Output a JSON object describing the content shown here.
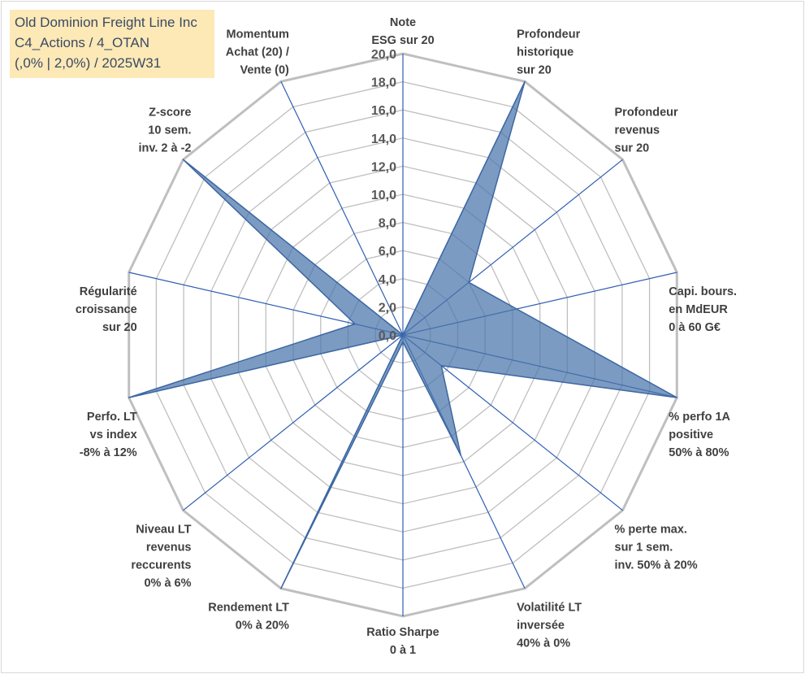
{
  "header": {
    "line1": "Old Dominion Freight Line Inc",
    "line2": "C4_Actions / 4_OTAN",
    "line3": "(,0% | 2,0%) / 2025W31"
  },
  "chart_data": {
    "type": "radar",
    "ylim": [
      0,
      20
    ],
    "tick_labels": [
      "0,0",
      "2,0",
      "4,0",
      "6,0",
      "8,0",
      "10,0",
      "12,0",
      "14,0",
      "16,0",
      "18,0",
      "20,0"
    ],
    "grid": true,
    "categories": [
      [
        "Note",
        "ESG sur 20"
      ],
      [
        "Profondeur",
        "historique",
        "sur 20"
      ],
      [
        "Profondeur",
        "revenus",
        "sur 20"
      ],
      [
        "Capi. bours.",
        "en MdEUR",
        "0 à 60 G€"
      ],
      [
        "% perfo 1A",
        "positive",
        "50% à 80%"
      ],
      [
        "% perte max.",
        "sur 1 sem.",
        "inv. 50% à 20%"
      ],
      [
        "Volatilité LT",
        "inversée",
        "40% à 0%"
      ],
      [
        "Ratio Sharpe",
        "0 à 1"
      ],
      [
        "Rendement LT",
        "0% à 20%"
      ],
      [
        "Niveau LT",
        "revenus",
        "reccurents",
        "0% à 6%"
      ],
      [
        "Perfo. LT",
        "vs index",
        "-8% à 12%"
      ],
      [
        "Régularité",
        "croissance",
        "sur 20"
      ],
      [
        "Z-score",
        "10 sem.",
        "inv. 2 à -2"
      ],
      [
        "Momentum",
        "Achat (20) /",
        "Vente (0)"
      ]
    ],
    "values": [
      0,
      20,
      6,
      8.3,
      20,
      3.5,
      9.5,
      0.5,
      20,
      0,
      20,
      3.5,
      20,
      0
    ],
    "colors": {
      "fill": "#4a75ab",
      "fill_opacity": 0.72,
      "series_line": "#3d67a3",
      "spoke": "#2f5fb3",
      "ring": "#bfbfbf"
    }
  }
}
